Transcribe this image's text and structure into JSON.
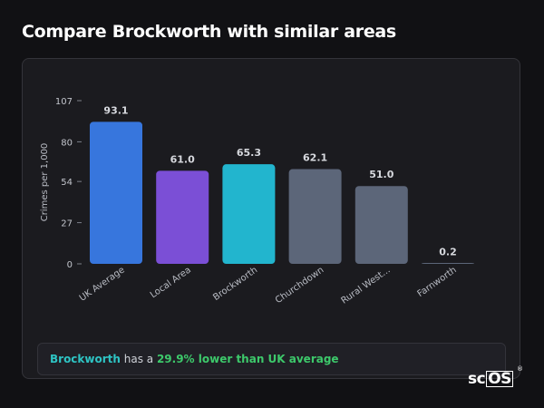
{
  "page": {
    "title": "Compare Brockworth with similar areas"
  },
  "summary": {
    "area": "Brockworth",
    "text_middle": " has a ",
    "comparison": "29.9% lower than UK average"
  },
  "logo": {
    "prefix": "sc",
    "boxed": "OS",
    "mark": "®"
  },
  "chart_data": {
    "type": "bar",
    "ylabel": "Crimes per 1,000",
    "xlabel": "",
    "ylim": [
      0,
      107
    ],
    "yticks": [
      0,
      27,
      54,
      80,
      107
    ],
    "grid": false,
    "categories": [
      "UK Average",
      "Local Area",
      "Brockworth",
      "Churchdown",
      "Rural West...",
      "Farnworth"
    ],
    "values": [
      93.1,
      61.0,
      65.3,
      62.1,
      51.0,
      0.2
    ],
    "value_labels": [
      "93.1",
      "61.0",
      "65.3",
      "62.1",
      "51.0",
      "0.2"
    ],
    "colors": [
      "#3776dd",
      "#7b4fd6",
      "#22b5ce",
      "#5c6679",
      "#5c6679",
      "#5c6679"
    ]
  }
}
